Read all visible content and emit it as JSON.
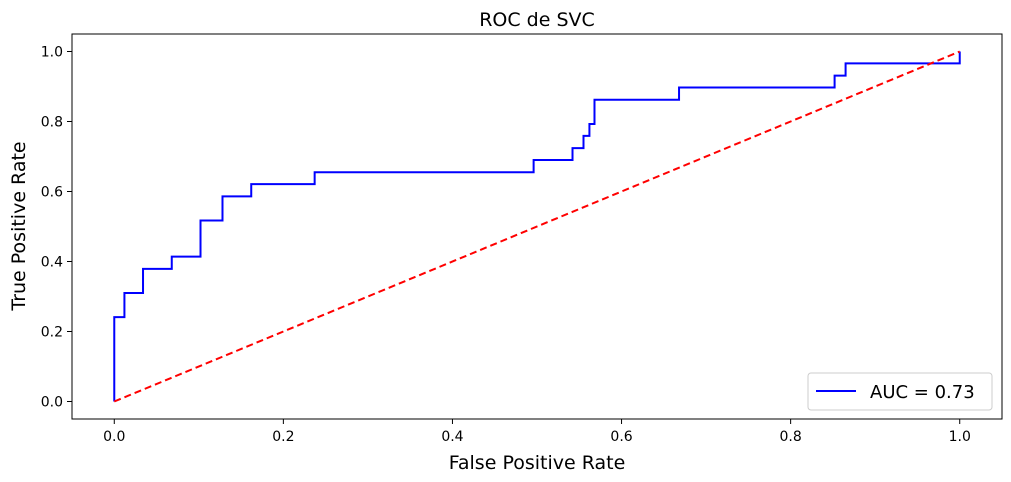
{
  "chart_data": {
    "type": "line",
    "title": "ROC de SVC",
    "xlabel": "False Positive Rate",
    "ylabel": "True Positive Rate",
    "xlim": [
      -0.05,
      1.05
    ],
    "ylim": [
      -0.05,
      1.05
    ],
    "xticks": [
      0.0,
      0.2,
      0.4,
      0.6,
      0.8,
      1.0
    ],
    "yticks": [
      0.0,
      0.2,
      0.4,
      0.6,
      0.8,
      1.0
    ],
    "xtick_labels": [
      "0.0",
      "0.2",
      "0.4",
      "0.6",
      "0.8",
      "1.0"
    ],
    "ytick_labels": [
      "0.0",
      "0.2",
      "0.4",
      "0.6",
      "0.8",
      "1.0"
    ],
    "grid": false,
    "legend_position": "lower-right",
    "series": [
      {
        "name": "AUC = 0.73",
        "color": "#0000ff",
        "style": "solid",
        "x": [
          0.0,
          0.0,
          0.012,
          0.012,
          0.034,
          0.034,
          0.068,
          0.068,
          0.102,
          0.102,
          0.128,
          0.128,
          0.162,
          0.162,
          0.237,
          0.237,
          0.496,
          0.496,
          0.542,
          0.542,
          0.555,
          0.555,
          0.562,
          0.562,
          0.568,
          0.568,
          0.668,
          0.668,
          0.852,
          0.852,
          0.865,
          0.865,
          1.0,
          1.0
        ],
        "y": [
          0.0,
          0.241,
          0.241,
          0.31,
          0.31,
          0.379,
          0.379,
          0.414,
          0.414,
          0.517,
          0.517,
          0.586,
          0.586,
          0.621,
          0.621,
          0.655,
          0.655,
          0.69,
          0.69,
          0.724,
          0.724,
          0.759,
          0.759,
          0.793,
          0.793,
          0.862,
          0.862,
          0.897,
          0.897,
          0.931,
          0.931,
          0.966,
          0.966,
          1.0
        ]
      },
      {
        "color": "#ff0000",
        "style": "dashed",
        "x": [
          0.0,
          1.0
        ],
        "y": [
          0.0,
          1.0
        ]
      }
    ]
  }
}
